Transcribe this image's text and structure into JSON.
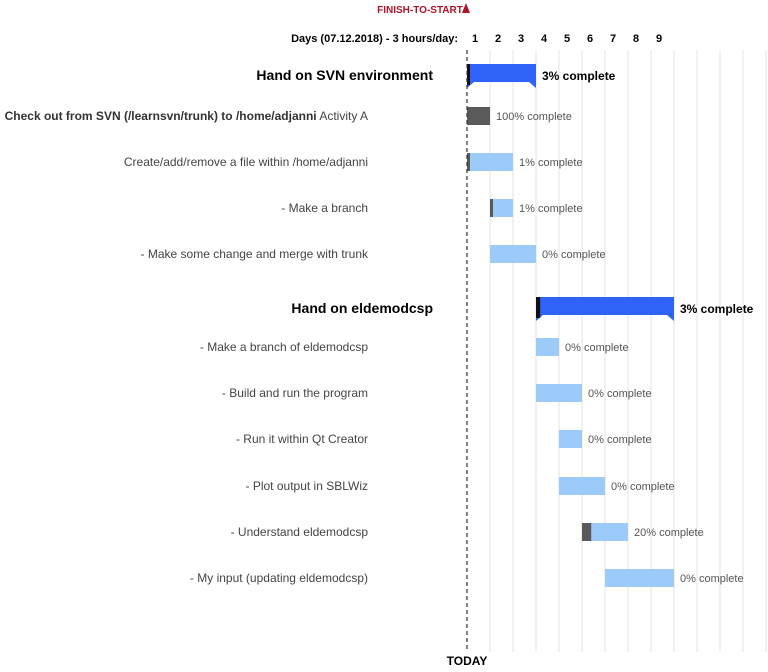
{
  "banner": "FINISH-TO-START",
  "today_label": "TODAY",
  "colors": {
    "group_bar": "#2f63f7",
    "task_bar": "#9ccbfa",
    "done_bar": "#5a5a5a",
    "grid": "#e3e3e3",
    "banner": "#b0132b"
  },
  "chart_data": {
    "type": "gantt",
    "axis_label": "Days (07.12.2018) - 3 hours/day:",
    "ticks": [
      "1",
      "2",
      "3",
      "4",
      "5",
      "6",
      "7",
      "8",
      "9"
    ],
    "today": 1,
    "rows": [
      {
        "kind": "group",
        "name": "Hand on SVN environment",
        "start": 1,
        "end": 4,
        "complete": 3,
        "label": "3% complete"
      },
      {
        "kind": "task",
        "name": "Check out from SVN (/learnsvn/trunk) to /home/adjanni",
        "suffix": " Activity A",
        "start": 1,
        "end": 2,
        "complete": 100,
        "label": "100% complete"
      },
      {
        "kind": "task",
        "name": "Create/add/remove a file within /home/adjanni",
        "start": 1,
        "end": 3,
        "complete": 1,
        "label": "1% complete"
      },
      {
        "kind": "task",
        "name": "- Make a branch",
        "start": 2,
        "end": 3,
        "complete": 1,
        "label": "1% complete"
      },
      {
        "kind": "task",
        "name": "- Make some change and merge with trunk",
        "start": 2,
        "end": 4,
        "complete": 0,
        "label": "0% complete"
      },
      {
        "kind": "group",
        "name": "Hand on eldemodcsp",
        "start": 4,
        "end": 10,
        "complete": 3,
        "label": "3% complete"
      },
      {
        "kind": "task",
        "name": "- Make a branch of eldemodcsp",
        "start": 4,
        "end": 5,
        "complete": 0,
        "label": "0% complete"
      },
      {
        "kind": "task",
        "name": "- Build and run the program",
        "start": 4,
        "end": 6,
        "complete": 0,
        "label": "0% complete"
      },
      {
        "kind": "task",
        "name": "- Run it within Qt Creator",
        "start": 5,
        "end": 6,
        "complete": 0,
        "label": "0% complete"
      },
      {
        "kind": "task",
        "name": "- Plot output in SBLWiz",
        "start": 5,
        "end": 7,
        "complete": 0,
        "label": "0% complete"
      },
      {
        "kind": "task",
        "name": "- Understand eldemodcsp",
        "start": 6,
        "end": 8,
        "complete": 20,
        "label": "20% complete"
      },
      {
        "kind": "task",
        "name": "- My input (updating eldemodcsp)",
        "start": 7,
        "end": 10,
        "complete": 0,
        "label": "0% complete"
      }
    ]
  }
}
